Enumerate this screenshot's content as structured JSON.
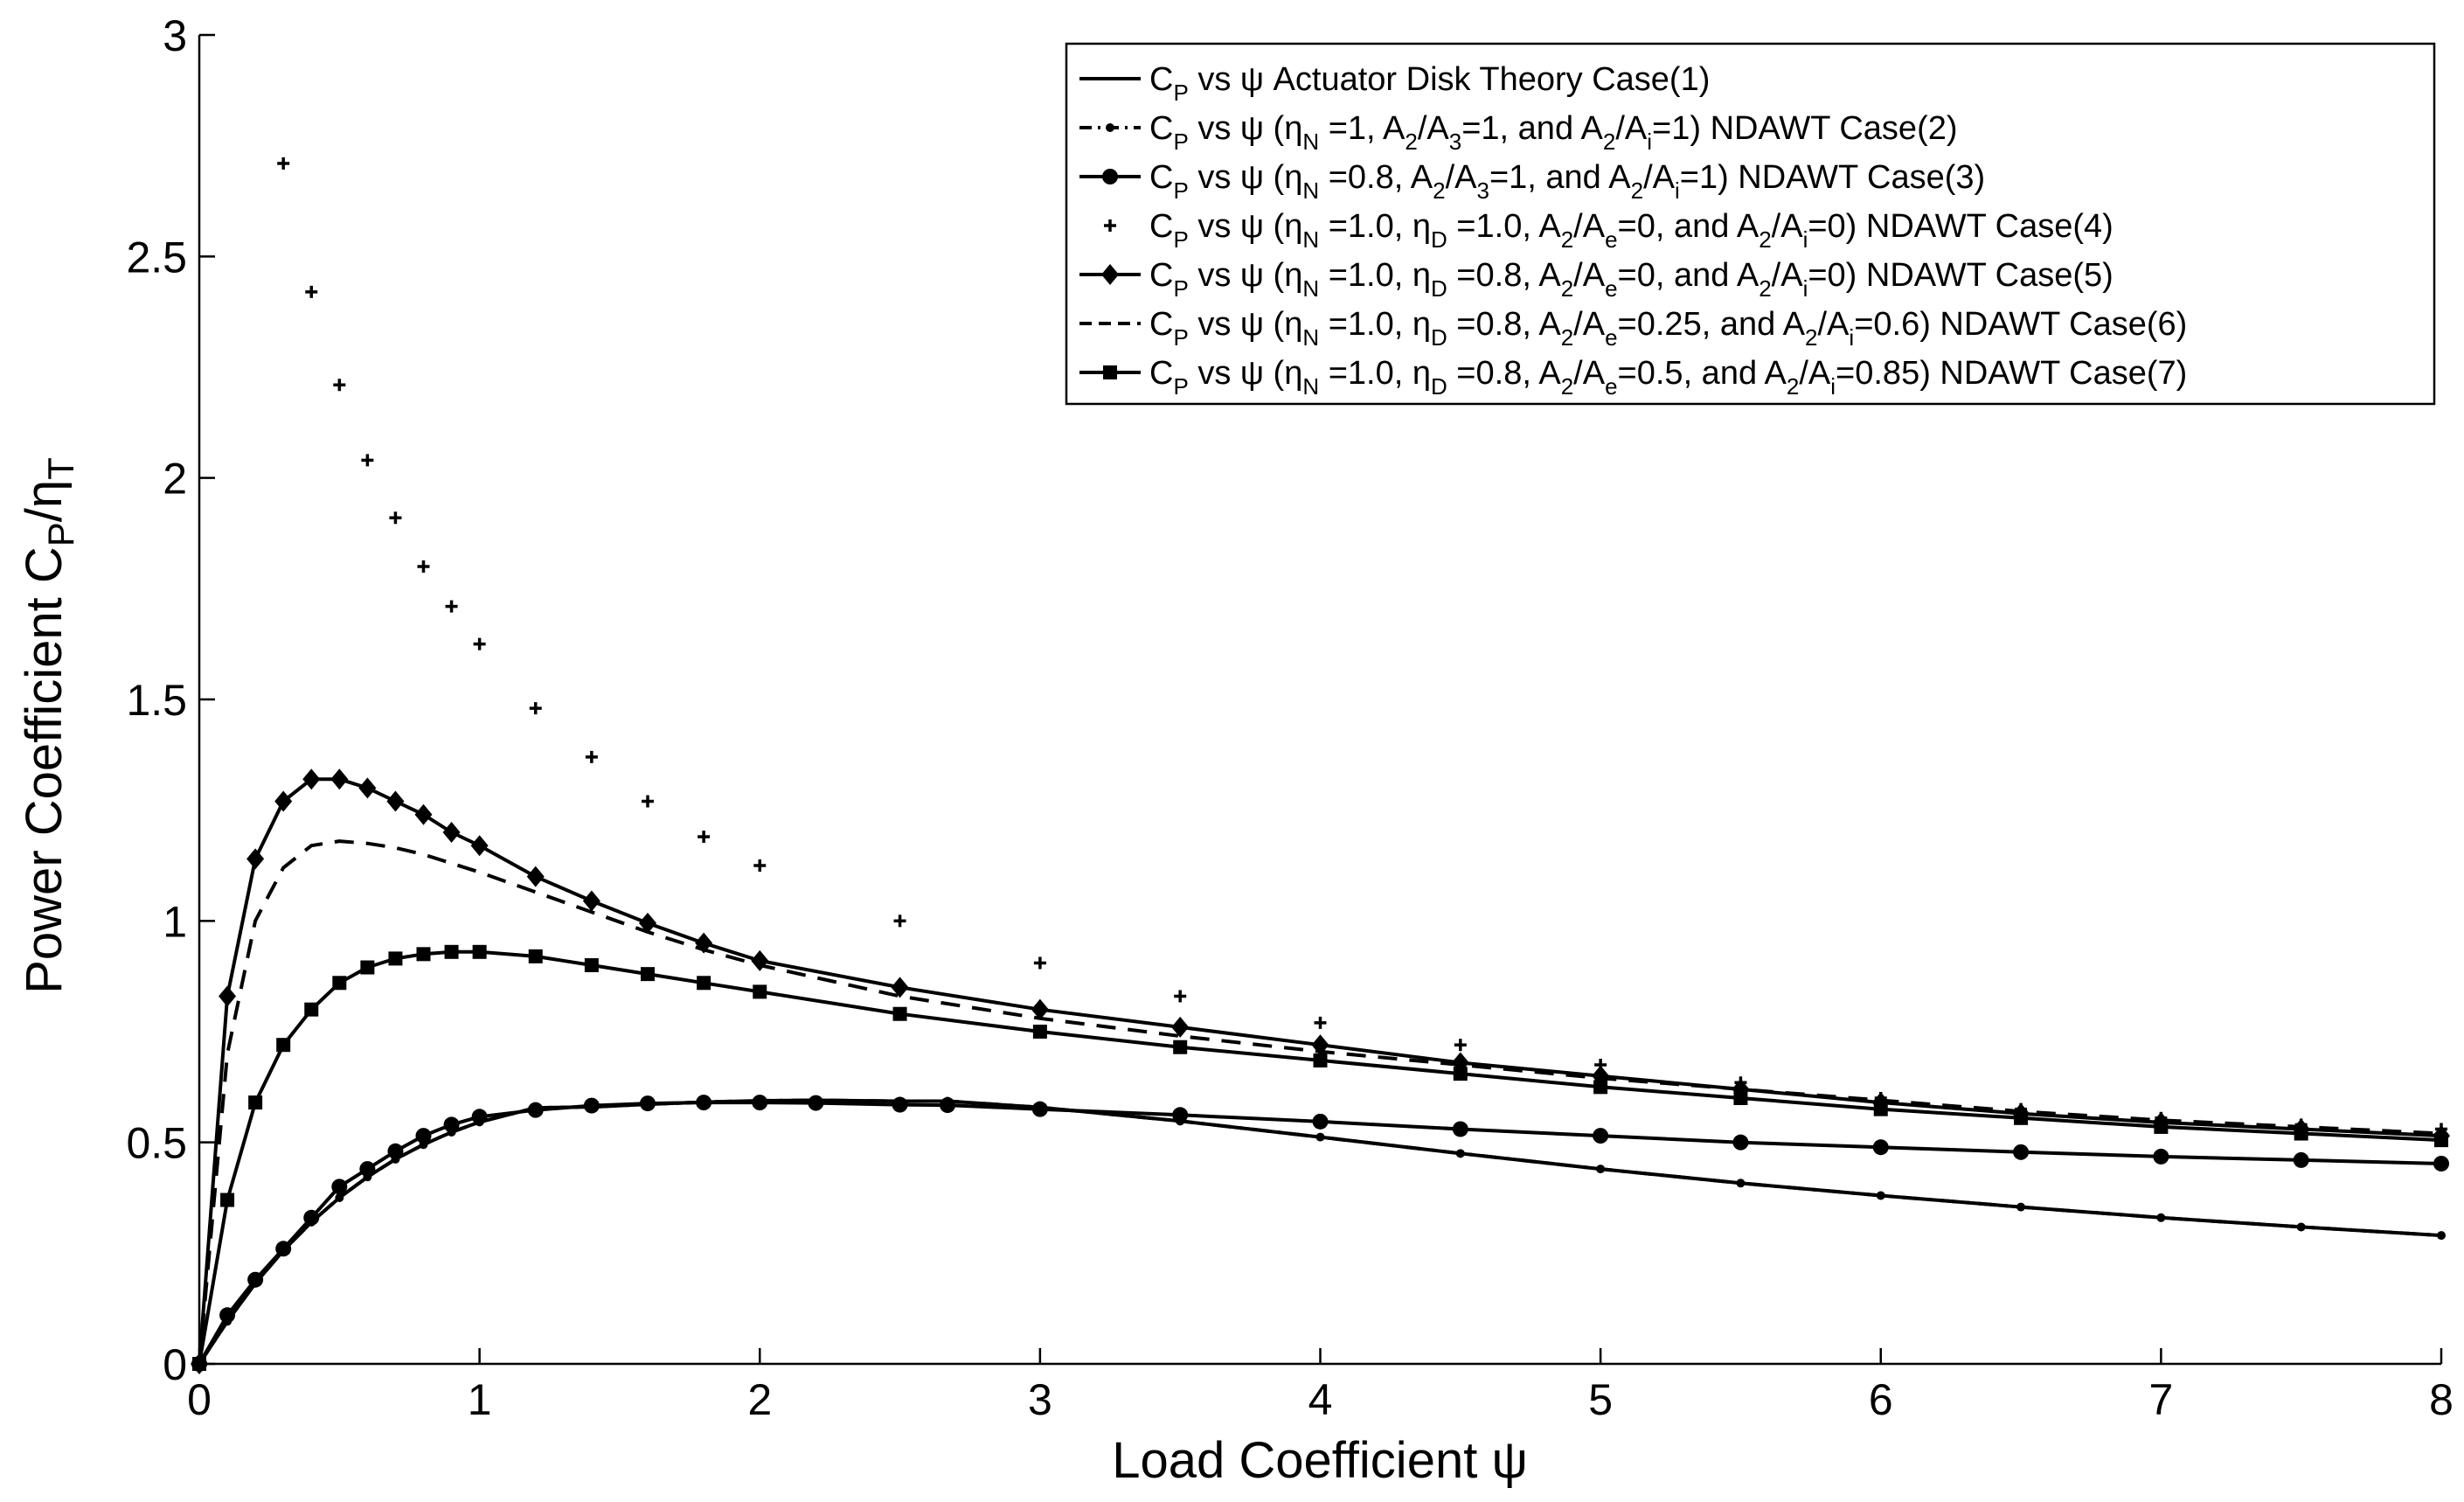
{
  "chart_data": {
    "type": "line",
    "xlabel": "Load Coefficient ψ",
    "ylabel_parts": {
      "main": "Power Coefficient C",
      "sub1": "P",
      "slash": "/η",
      "sub2": "T"
    },
    "xlim": [
      0,
      8
    ],
    "ylim": [
      0,
      3
    ],
    "xticks": [
      "0",
      "1",
      "2",
      "3",
      "4",
      "5",
      "6",
      "7",
      "8"
    ],
    "yticks": [
      "0",
      "0.5",
      "1",
      "1.5",
      "2",
      "2.5",
      "3"
    ],
    "legend_position": "top-right",
    "series": [
      {
        "name": "Case(1)",
        "style": "solid",
        "marker": "none",
        "legend": [
          {
            "t": "C"
          },
          {
            "t": "P",
            "s": "sub"
          },
          {
            "t": " vs ψ Actuator Disk Theory Case(1)"
          }
        ],
        "x": [
          0.0,
          0.1,
          0.2,
          0.3,
          0.4,
          0.5,
          0.6,
          0.7,
          0.8,
          0.9,
          1.0,
          1.2,
          1.4,
          1.6,
          1.8,
          2.0,
          2.2,
          2.5,
          2.67,
          3.0,
          3.5,
          4.0,
          4.5,
          5.0,
          5.5,
          6.0,
          6.5,
          7.0,
          7.5,
          8.0
        ],
        "y": [
          0.0,
          0.096,
          0.182,
          0.256,
          0.32,
          0.375,
          0.422,
          0.462,
          0.495,
          0.523,
          0.546,
          0.578,
          0.58,
          0.586,
          0.591,
          0.594,
          0.595,
          0.593,
          0.593,
          0.579,
          0.548,
          0.512,
          0.475,
          0.44,
          0.408,
          0.38,
          0.354,
          0.33,
          0.309,
          0.29
        ]
      },
      {
        "name": "Case(2)",
        "style": "dashdot",
        "marker": "smalldot",
        "legend": [
          {
            "t": "C"
          },
          {
            "t": "P",
            "s": "sub"
          },
          {
            "t": " vs ψ (η"
          },
          {
            "t": "N",
            "s": "sub"
          },
          {
            "t": " =1, A"
          },
          {
            "t": "2",
            "s": "sub"
          },
          {
            "t": "/A"
          },
          {
            "t": "3",
            "s": "sub"
          },
          {
            "t": "=1, and A"
          },
          {
            "t": "2",
            "s": "sub"
          },
          {
            "t": "/A"
          },
          {
            "t": "i",
            "s": "sub"
          },
          {
            "t": "=1) NDAWT Case(2)"
          }
        ],
        "x": [
          0.0,
          0.1,
          0.2,
          0.3,
          0.4,
          0.5,
          0.6,
          0.7,
          0.8,
          0.9,
          1.0,
          1.2,
          1.4,
          1.6,
          1.8,
          2.0,
          2.2,
          2.5,
          2.67,
          3.0,
          3.5,
          4.0,
          4.5,
          5.0,
          5.5,
          6.0,
          6.5,
          7.0,
          7.5,
          8.0
        ],
        "y": [
          0.0,
          0.096,
          0.182,
          0.256,
          0.32,
          0.375,
          0.422,
          0.462,
          0.495,
          0.523,
          0.546,
          0.578,
          0.58,
          0.586,
          0.591,
          0.594,
          0.595,
          0.593,
          0.593,
          0.579,
          0.548,
          0.512,
          0.475,
          0.44,
          0.408,
          0.38,
          0.354,
          0.33,
          0.309,
          0.29
        ]
      },
      {
        "name": "Case(3)",
        "style": "solid",
        "marker": "circle",
        "legend": [
          {
            "t": "C"
          },
          {
            "t": "P",
            "s": "sub"
          },
          {
            "t": " vs ψ (η"
          },
          {
            "t": "N",
            "s": "sub"
          },
          {
            "t": " =0.8, A"
          },
          {
            "t": "2",
            "s": "sub"
          },
          {
            "t": "/A"
          },
          {
            "t": "3",
            "s": "sub"
          },
          {
            "t": "=1, and A"
          },
          {
            "t": "2",
            "s": "sub"
          },
          {
            "t": "/A"
          },
          {
            "t": "i",
            "s": "sub"
          },
          {
            "t": "=1) NDAWT Case(3)"
          }
        ],
        "x": [
          0.0,
          0.1,
          0.2,
          0.3,
          0.4,
          0.5,
          0.6,
          0.7,
          0.8,
          0.9,
          1.0,
          1.2,
          1.4,
          1.6,
          1.8,
          2.0,
          2.2,
          2.5,
          2.67,
          3.0,
          3.5,
          4.0,
          4.5,
          5.0,
          5.5,
          6.0,
          6.5,
          7.0,
          7.5,
          8.0
        ],
        "y": [
          0.0,
          0.11,
          0.19,
          0.26,
          0.33,
          0.4,
          0.44,
          0.48,
          0.515,
          0.54,
          0.558,
          0.573,
          0.583,
          0.588,
          0.59,
          0.59,
          0.589,
          0.585,
          0.584,
          0.575,
          0.562,
          0.547,
          0.53,
          0.515,
          0.5,
          0.489,
          0.478,
          0.468,
          0.46,
          0.452
        ]
      },
      {
        "name": "Case(4)",
        "style": "none",
        "marker": "plus",
        "legend": [
          {
            "t": "C"
          },
          {
            "t": "P",
            "s": "sub"
          },
          {
            "t": " vs ψ (η"
          },
          {
            "t": "N",
            "s": "sub"
          },
          {
            "t": " =1.0, η"
          },
          {
            "t": "D",
            "s": "sub"
          },
          {
            "t": " =1.0, A"
          },
          {
            "t": "2",
            "s": "sub"
          },
          {
            "t": "/A"
          },
          {
            "t": "e",
            "s": "sub"
          },
          {
            "t": "=0, and A"
          },
          {
            "t": "2",
            "s": "sub"
          },
          {
            "t": "/A"
          },
          {
            "t": "i",
            "s": "sub"
          },
          {
            "t": "=0) NDAWT Case(4)"
          }
        ],
        "x": [
          0.3,
          0.4,
          0.5,
          0.6,
          0.7,
          0.8,
          0.9,
          1.0,
          1.2,
          1.4,
          1.6,
          1.8,
          2.0,
          2.5,
          3.0,
          3.5,
          4.0,
          4.5,
          5.0,
          5.5,
          6.0,
          6.5,
          7.0,
          7.5,
          8.0
        ],
        "y": [
          2.71,
          2.42,
          2.21,
          2.04,
          1.91,
          1.8,
          1.71,
          1.625,
          1.48,
          1.37,
          1.27,
          1.19,
          1.125,
          1.0,
          0.905,
          0.83,
          0.77,
          0.72,
          0.675,
          0.635,
          0.6,
          0.575,
          0.555,
          0.54,
          0.53
        ]
      },
      {
        "name": "Case(5)",
        "style": "solid",
        "marker": "diamond",
        "legend": [
          {
            "t": "C"
          },
          {
            "t": "P",
            "s": "sub"
          },
          {
            "t": " vs ψ (η"
          },
          {
            "t": "N",
            "s": "sub"
          },
          {
            "t": " =1.0, η"
          },
          {
            "t": "D",
            "s": "sub"
          },
          {
            "t": " =0.8, A"
          },
          {
            "t": "2",
            "s": "sub"
          },
          {
            "t": "/A"
          },
          {
            "t": "e",
            "s": "sub"
          },
          {
            "t": "=0, and A"
          },
          {
            "t": "2",
            "s": "sub"
          },
          {
            "t": "/A"
          },
          {
            "t": "i",
            "s": "sub"
          },
          {
            "t": "=0) NDAWT Case(5)"
          }
        ],
        "x": [
          0.0,
          0.1,
          0.2,
          0.3,
          0.4,
          0.5,
          0.6,
          0.7,
          0.8,
          0.9,
          1.0,
          1.2,
          1.4,
          1.6,
          1.8,
          2.0,
          2.5,
          3.0,
          3.5,
          4.0,
          4.5,
          5.0,
          5.5,
          6.0,
          6.5,
          7.0,
          7.5,
          8.0
        ],
        "y": [
          0.0,
          0.83,
          1.14,
          1.27,
          1.32,
          1.32,
          1.3,
          1.27,
          1.24,
          1.2,
          1.17,
          1.1,
          1.045,
          0.995,
          0.95,
          0.91,
          0.85,
          0.8,
          0.76,
          0.72,
          0.68,
          0.65,
          0.62,
          0.59,
          0.565,
          0.545,
          0.53,
          0.515
        ]
      },
      {
        "name": "Case(6)",
        "style": "dashed",
        "marker": "none",
        "legend": [
          {
            "t": "C"
          },
          {
            "t": "P",
            "s": "sub"
          },
          {
            "t": " vs ψ (η"
          },
          {
            "t": "N",
            "s": "sub"
          },
          {
            "t": " =1.0, η"
          },
          {
            "t": "D",
            "s": "sub"
          },
          {
            "t": " =0.8, A"
          },
          {
            "t": "2",
            "s": "sub"
          },
          {
            "t": "/A"
          },
          {
            "t": "e",
            "s": "sub"
          },
          {
            "t": "=0.25, and A"
          },
          {
            "t": "2",
            "s": "sub"
          },
          {
            "t": "/A"
          },
          {
            "t": "i",
            "s": "sub"
          },
          {
            "t": "=0.6) NDAWT Case(6)"
          }
        ],
        "x": [
          0.0,
          0.1,
          0.2,
          0.3,
          0.4,
          0.5,
          0.6,
          0.7,
          0.8,
          0.9,
          1.0,
          1.2,
          1.4,
          1.6,
          1.8,
          2.0,
          2.5,
          3.0,
          3.5,
          4.0,
          4.5,
          5.0,
          5.5,
          6.0,
          6.5,
          7.0,
          7.5,
          8.0
        ],
        "y": [
          0.0,
          0.7,
          1.0,
          1.12,
          1.17,
          1.18,
          1.175,
          1.165,
          1.15,
          1.13,
          1.11,
          1.065,
          1.02,
          0.975,
          0.935,
          0.9,
          0.83,
          0.78,
          0.74,
          0.705,
          0.675,
          0.645,
          0.62,
          0.595,
          0.57,
          0.55,
          0.535,
          0.52
        ]
      },
      {
        "name": "Case(7)",
        "style": "solid",
        "marker": "square",
        "legend": [
          {
            "t": "C"
          },
          {
            "t": "P",
            "s": "sub"
          },
          {
            "t": " vs ψ (η"
          },
          {
            "t": "N",
            "s": "sub"
          },
          {
            "t": " =1.0, η"
          },
          {
            "t": "D",
            "s": "sub"
          },
          {
            "t": " =0.8, A"
          },
          {
            "t": "2",
            "s": "sub"
          },
          {
            "t": "/A"
          },
          {
            "t": "e",
            "s": "sub"
          },
          {
            "t": "=0.5, and A"
          },
          {
            "t": "2",
            "s": "sub"
          },
          {
            "t": "/A"
          },
          {
            "t": "i",
            "s": "sub"
          },
          {
            "t": "=0.85) NDAWT Case(7)"
          }
        ],
        "x": [
          0.0,
          0.1,
          0.2,
          0.3,
          0.4,
          0.5,
          0.6,
          0.7,
          0.8,
          0.9,
          1.0,
          1.2,
          1.4,
          1.6,
          1.8,
          2.0,
          2.5,
          3.0,
          3.5,
          4.0,
          4.5,
          5.0,
          5.5,
          6.0,
          6.5,
          7.0,
          7.5,
          8.0
        ],
        "y": [
          0.0,
          0.37,
          0.59,
          0.72,
          0.8,
          0.86,
          0.895,
          0.915,
          0.925,
          0.93,
          0.93,
          0.92,
          0.9,
          0.88,
          0.86,
          0.84,
          0.79,
          0.75,
          0.715,
          0.685,
          0.655,
          0.625,
          0.6,
          0.575,
          0.555,
          0.535,
          0.52,
          0.505
        ]
      }
    ]
  }
}
